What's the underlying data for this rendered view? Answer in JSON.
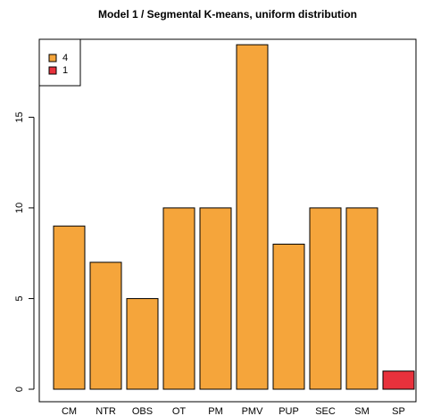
{
  "chart_data": {
    "type": "bar",
    "title": "Model 1 / Segmental K-means, uniform distribution",
    "categories": [
      "CM",
      "NTR",
      "OBS",
      "OT",
      "PM",
      "PMV",
      "PUP",
      "SEC",
      "SM",
      "SP"
    ],
    "values": [
      9,
      7,
      5,
      10,
      10,
      19,
      8,
      10,
      10,
      1
    ],
    "groups": [
      "4",
      "4",
      "4",
      "4",
      "4",
      "4",
      "4",
      "4",
      "4",
      "1"
    ],
    "legend": [
      {
        "label": "4",
        "color": "#f5a53b"
      },
      {
        "label": "1",
        "color": "#e8313c"
      }
    ],
    "legend_position": "top-left",
    "ylim": [
      0,
      19.3
    ],
    "yticks": [
      0,
      5,
      10,
      15
    ]
  }
}
